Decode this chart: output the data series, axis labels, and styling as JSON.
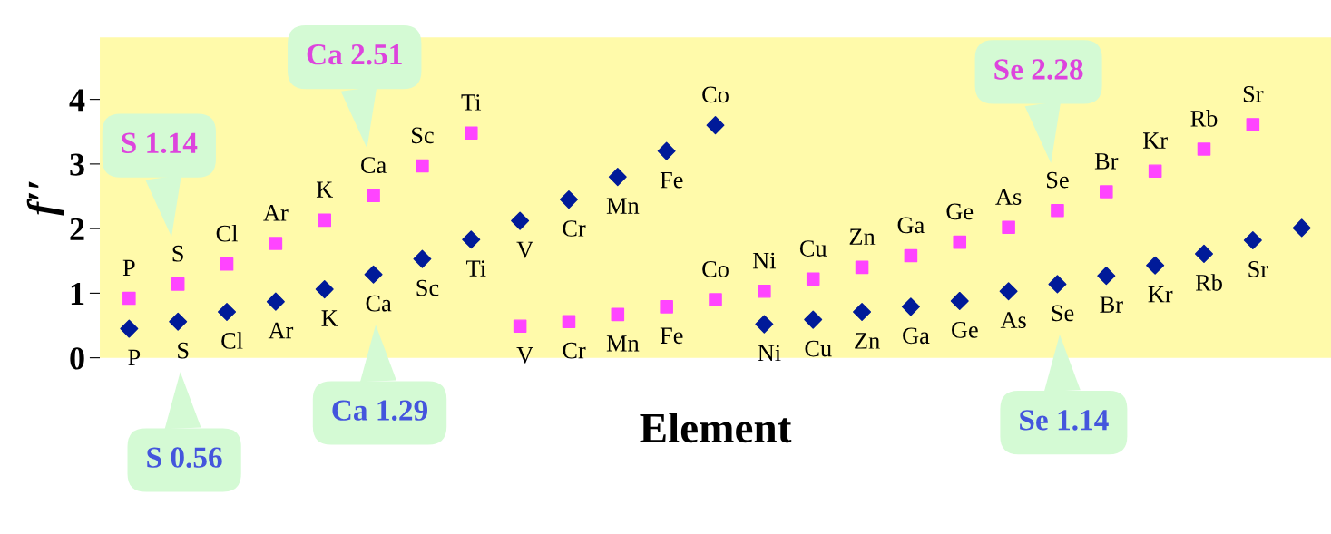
{
  "chart_data": {
    "type": "scatter",
    "xlabel": "Element",
    "ylabel": "f′′",
    "categories": [
      "P",
      "S",
      "Cl",
      "Ar",
      "K",
      "Ca",
      "Sc",
      "Ti",
      "V",
      "Cr",
      "Mn",
      "Fe",
      "Co",
      "Ni",
      "Cu",
      "Zn",
      "Ga",
      "Ge",
      "As",
      "Se",
      "Br",
      "Kr",
      "Rb",
      "Sr",
      null
    ],
    "series": [
      {
        "color": "#ff44ff",
        "marker": "square",
        "values": [
          0.92,
          1.14,
          1.45,
          1.77,
          2.13,
          2.51,
          2.97,
          3.48,
          0.49,
          0.56,
          0.67,
          0.79,
          0.9,
          1.03,
          1.22,
          1.4,
          1.58,
          1.79,
          2.02,
          2.28,
          2.57,
          2.89,
          3.23,
          3.61,
          null
        ]
      },
      {
        "color": "#001a99",
        "marker": "diamond",
        "values": [
          0.45,
          0.56,
          0.71,
          0.87,
          1.06,
          1.29,
          1.53,
          1.83,
          2.12,
          2.45,
          2.8,
          3.2,
          3.6,
          0.52,
          0.59,
          0.71,
          0.79,
          0.88,
          1.03,
          1.14,
          1.27,
          1.43,
          1.61,
          1.82,
          2.01
        ]
      }
    ],
    "ylim": [
      0,
      4.96
    ],
    "yticks": [
      0,
      1,
      2,
      3,
      4
    ],
    "tick_labels": "y",
    "grid": false,
    "legend": false,
    "annotations": [
      "S 1.14",
      "Ca 2.51",
      "Se 2.28",
      "S 0.56",
      "Ca 1.29",
      "Se 1.14"
    ]
  }
}
